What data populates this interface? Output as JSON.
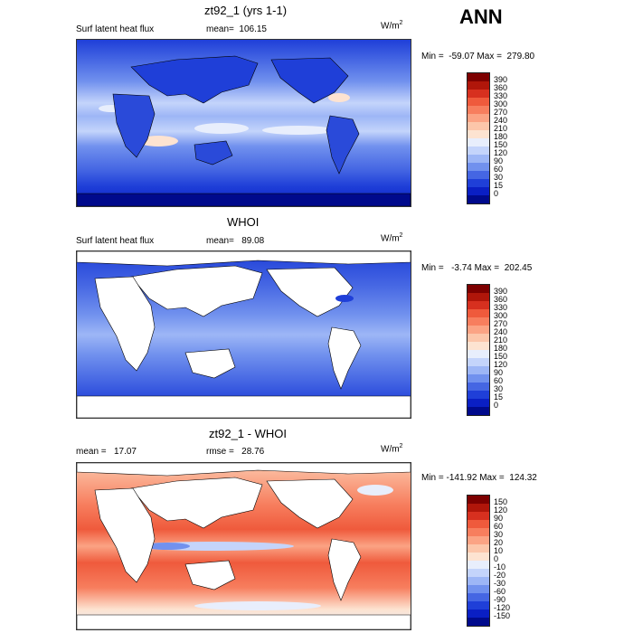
{
  "season": "ANN",
  "panels": [
    {
      "title": "zt92_1 (yrs 1-1)",
      "left_label": "Surf latent heat flux",
      "stat": "mean=  106.15",
      "units": "W/m",
      "units_exp": "2",
      "minmax": "Min =  -59.07 Max =  279.80",
      "colorbar_labels": [
        "390",
        "360",
        "330",
        "300",
        "270",
        "240",
        "210",
        "180",
        "150",
        "120",
        "90",
        "60",
        "30",
        "15",
        "0"
      ],
      "colors": [
        "#7d0000",
        "#b0160a",
        "#d7301f",
        "#ef5a3c",
        "#f77e5e",
        "#fba384",
        "#fcc6aa",
        "#fde3d1",
        "#e8eefc",
        "#c4d4fb",
        "#9db6f6",
        "#7191ee",
        "#4566e3",
        "#1f3fd8",
        "#0a1fc4",
        "#000a8c"
      ]
    },
    {
      "title": "WHOI",
      "left_label": "Surf latent heat flux",
      "stat": "mean=   89.08",
      "units": "W/m",
      "units_exp": "2",
      "minmax": "Min =   -3.74 Max =  202.45",
      "colorbar_labels": [
        "390",
        "360",
        "330",
        "300",
        "270",
        "240",
        "210",
        "180",
        "150",
        "120",
        "90",
        "60",
        "30",
        "15",
        "0"
      ],
      "colors": [
        "#7d0000",
        "#b0160a",
        "#d7301f",
        "#ef5a3c",
        "#f77e5e",
        "#fba384",
        "#fcc6aa",
        "#fde3d1",
        "#e8eefc",
        "#c4d4fb",
        "#9db6f6",
        "#7191ee",
        "#4566e3",
        "#1f3fd8",
        "#0a1fc4",
        "#000a8c"
      ]
    },
    {
      "title": "zt92_1 - WHOI",
      "left_label": "mean =   17.07",
      "stat": "rmse =   28.76",
      "units": "W/m",
      "units_exp": "2",
      "minmax": "Min = -141.92 Max =  124.32",
      "colorbar_labels": [
        "150",
        "120",
        "90",
        "60",
        "30",
        "20",
        "10",
        "0",
        "-10",
        "-20",
        "-30",
        "-60",
        "-90",
        "-120",
        "-150"
      ],
      "colors": [
        "#7d0000",
        "#b0160a",
        "#d7301f",
        "#ef5a3c",
        "#f77e5e",
        "#fba384",
        "#fcc6aa",
        "#fde3d1",
        "#e8eefc",
        "#c4d4fb",
        "#9db6f6",
        "#7191ee",
        "#4566e3",
        "#1f3fd8",
        "#0a1fc4",
        "#000a8c"
      ]
    }
  ]
}
